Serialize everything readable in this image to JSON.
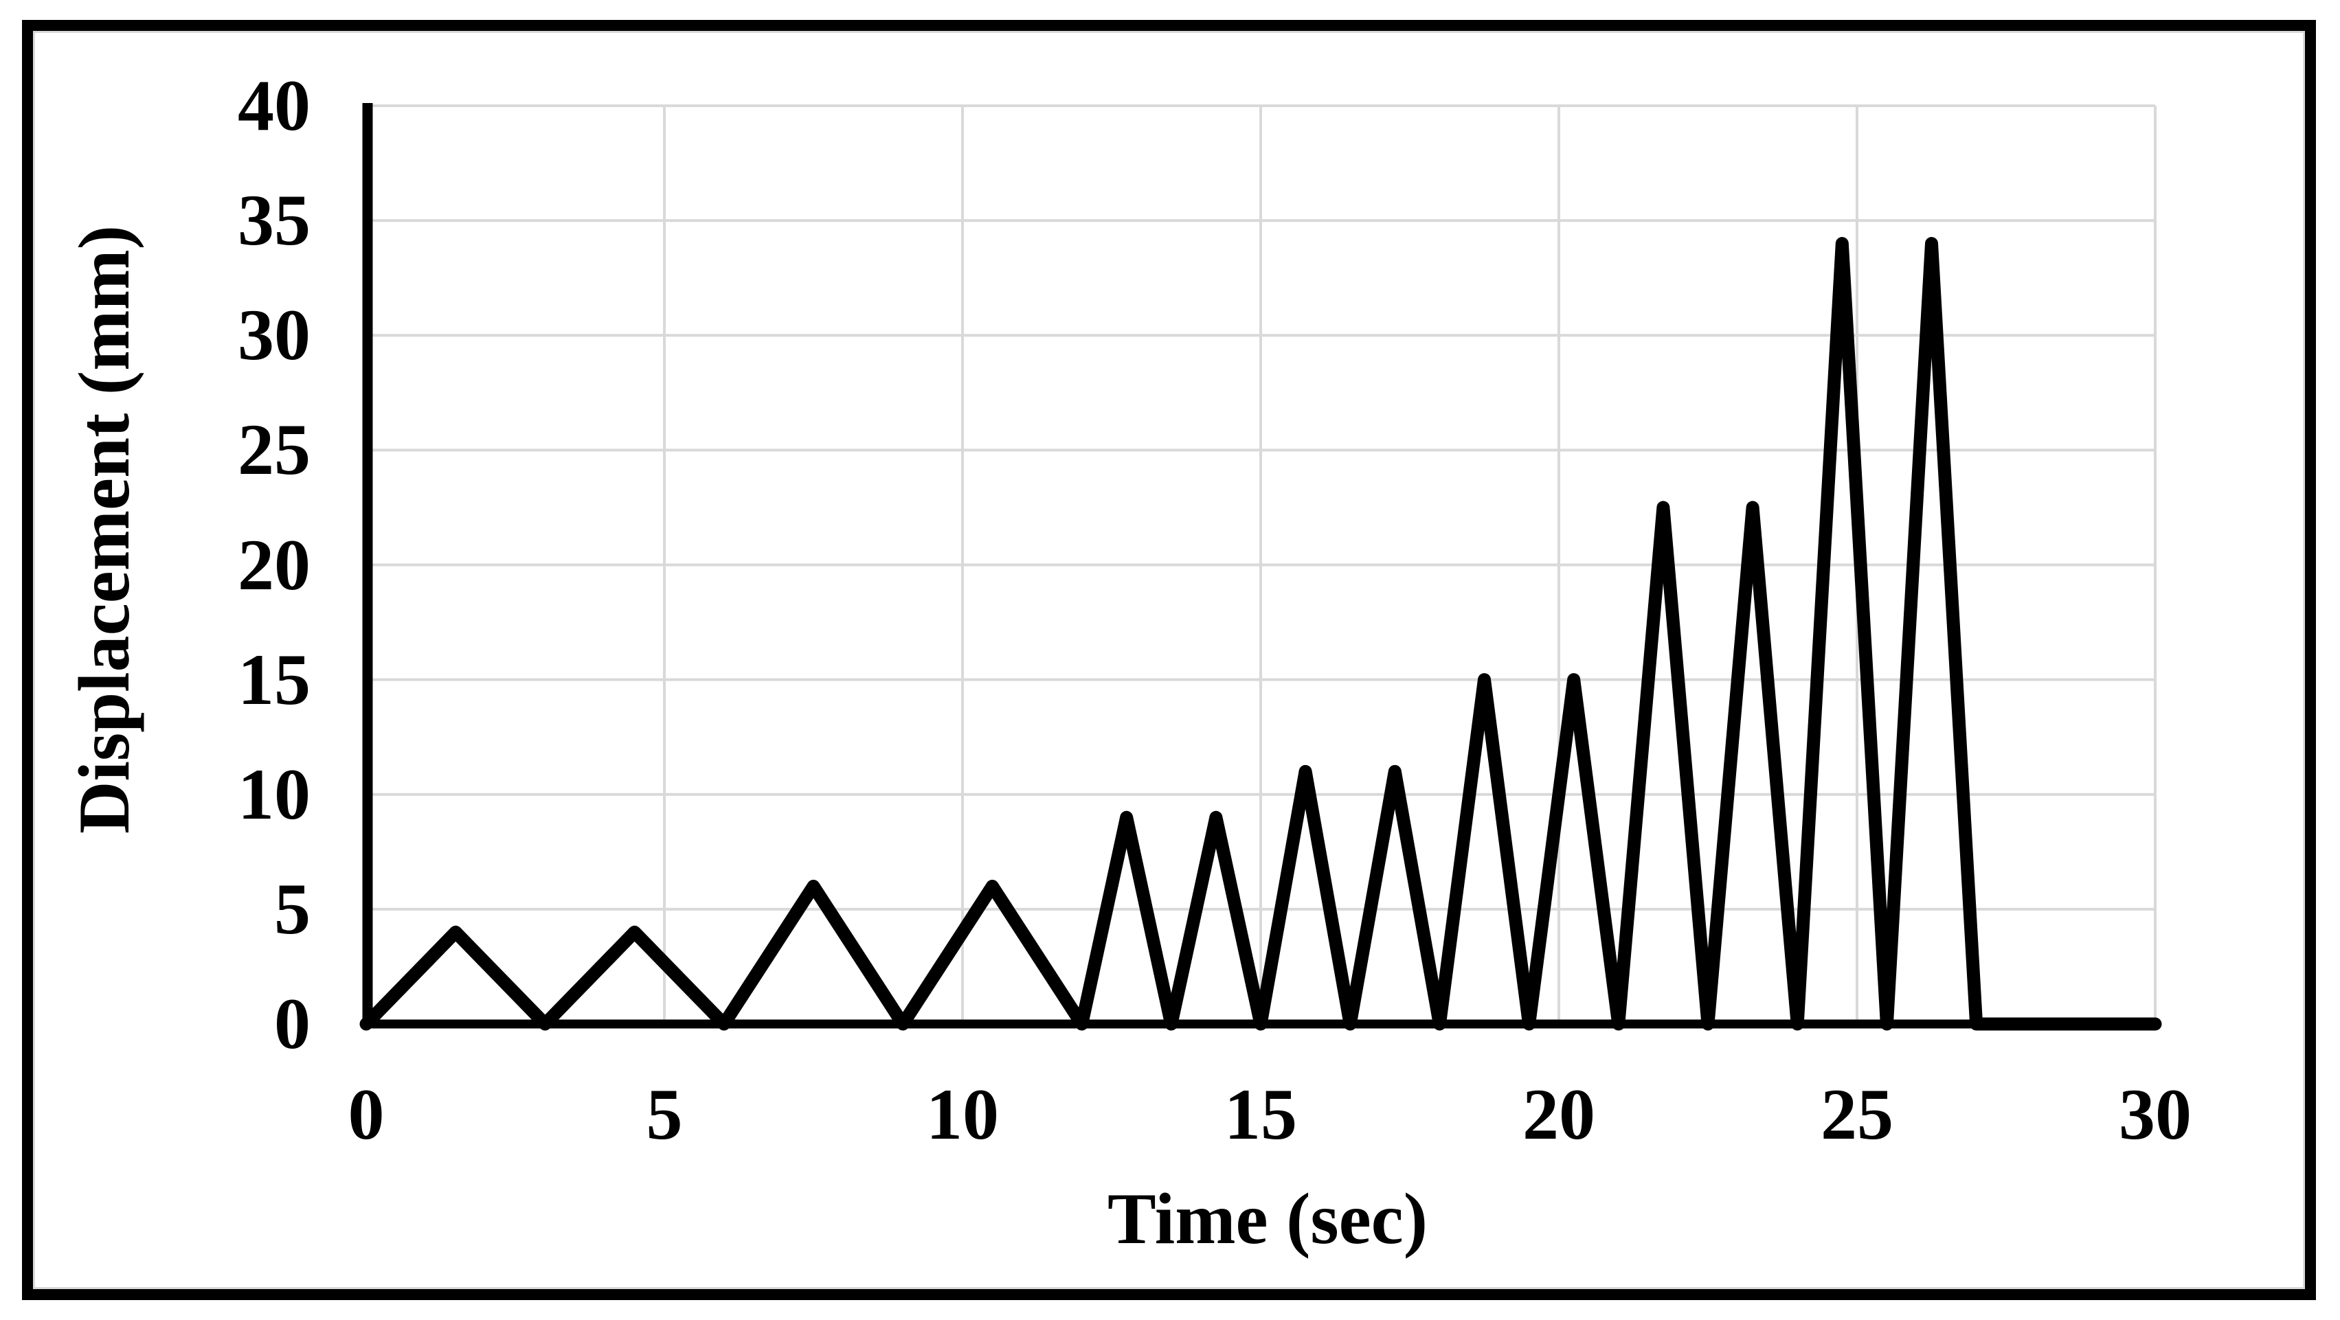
{
  "figure": {
    "background": "#ffffff",
    "frame_color": "#000000",
    "inner_outline_color": "#d9d9d9",
    "grid_color": "#d9d9d9",
    "axis_color": "#000000",
    "line_color": "#000000",
    "text_color": "#000000"
  },
  "chart_data": {
    "type": "line",
    "title": "",
    "xlabel": "Time (sec)",
    "ylabel": "Displacement (mm)",
    "xlim": [
      0,
      30
    ],
    "ylim": [
      0,
      40
    ],
    "x_ticks": [
      0,
      5,
      10,
      15,
      20,
      25,
      30
    ],
    "y_ticks": [
      0,
      5,
      10,
      15,
      20,
      25,
      30,
      35,
      40
    ],
    "grid": true,
    "legend": false,
    "series": [
      {
        "name": "displacement",
        "points": [
          [
            0,
            0
          ],
          [
            1.5,
            4
          ],
          [
            3,
            0
          ],
          [
            4.5,
            4
          ],
          [
            6,
            0
          ],
          [
            7.5,
            6
          ],
          [
            9,
            0
          ],
          [
            10.5,
            6
          ],
          [
            12,
            0
          ],
          [
            12.75,
            9
          ],
          [
            13.5,
            0
          ],
          [
            14.25,
            9
          ],
          [
            15,
            0
          ],
          [
            15.75,
            11
          ],
          [
            16.5,
            0
          ],
          [
            17.25,
            11
          ],
          [
            18,
            0
          ],
          [
            18.75,
            15
          ],
          [
            19.5,
            0
          ],
          [
            20.25,
            15
          ],
          [
            21,
            0
          ],
          [
            21.75,
            22.5
          ],
          [
            22.5,
            0
          ],
          [
            23.25,
            22.5
          ],
          [
            24,
            0
          ],
          [
            24.75,
            34
          ],
          [
            25.5,
            0
          ],
          [
            26.25,
            34
          ],
          [
            27,
            0
          ],
          [
            30,
            0
          ]
        ]
      }
    ]
  }
}
